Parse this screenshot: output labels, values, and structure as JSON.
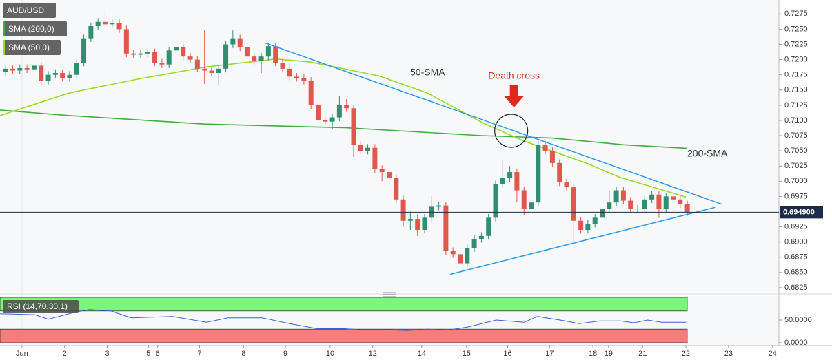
{
  "chart_data": {
    "type": "candlestick",
    "title": "AUD/USD",
    "up_color": "#2f8f6f",
    "down_color": "#e0584d",
    "open": [
      0.718,
      0.7185,
      0.7182,
      0.7186,
      0.7184,
      0.719,
      0.7165,
      0.7175,
      0.7178,
      0.717,
      0.7175,
      0.7195,
      0.7235,
      0.7255,
      0.7262,
      0.7258,
      0.726,
      0.725,
      0.721,
      0.7208,
      0.721,
      0.7212,
      0.7195,
      0.7192,
      0.7215,
      0.722,
      0.7205,
      0.72,
      0.7185,
      0.7182,
      0.7178,
      0.7185,
      0.7225,
      0.7235,
      0.722,
      0.7205,
      0.7198,
      0.7205,
      0.7222,
      0.7195,
      0.7185,
      0.7172,
      0.717,
      0.7165,
      0.7125,
      0.71,
      0.7098,
      0.7105,
      0.7125,
      0.712,
      0.706,
      0.705,
      0.7055,
      0.702,
      0.7015,
      0.7005,
      0.697,
      0.6935,
      0.6938,
      0.692,
      0.694,
      0.6958,
      0.696,
      0.6885,
      0.688,
      0.6865,
      0.689,
      0.6905,
      0.691,
      0.694,
      0.6995,
      0.7005,
      0.7015,
      0.6985,
      0.6955,
      0.6965,
      0.706,
      0.705,
      0.703,
      0.6998,
      0.699,
      0.6935,
      0.692,
      0.693,
      0.694,
      0.6955,
      0.6965,
      0.6985,
      0.6968,
      0.6955,
      0.6955,
      0.697,
      0.6978,
      0.6955,
      0.6975,
      0.697,
      0.6962
    ],
    "high": [
      0.7191,
      0.7191,
      0.7192,
      0.7192,
      0.7196,
      0.7196,
      0.7181,
      0.7184,
      0.7184,
      0.7181,
      0.7201,
      0.7241,
      0.7261,
      0.7268,
      0.728,
      0.7266,
      0.7266,
      0.7256,
      0.7216,
      0.7216,
      0.7218,
      0.7218,
      0.7201,
      0.7221,
      0.7226,
      0.7226,
      0.7211,
      0.7206,
      0.7248,
      0.7188,
      0.7191,
      0.7231,
      0.7248,
      0.7241,
      0.7226,
      0.7211,
      0.7211,
      0.7228,
      0.7228,
      0.7201,
      0.7195,
      0.7178,
      0.7176,
      0.7171,
      0.7131,
      0.7106,
      0.7111,
      0.714,
      0.7135,
      0.7126,
      0.7066,
      0.7061,
      0.7061,
      0.7026,
      0.7021,
      0.7011,
      0.6976,
      0.695,
      0.6944,
      0.6946,
      0.6975,
      0.6966,
      0.6966,
      0.6891,
      0.6886,
      0.6896,
      0.6911,
      0.6916,
      0.6946,
      0.7001,
      0.7035,
      0.7025,
      0.7021,
      0.6991,
      0.6971,
      0.7066,
      0.7066,
      0.7056,
      0.7036,
      0.7004,
      0.6996,
      0.6941,
      0.6936,
      0.6946,
      0.6961,
      0.6985,
      0.6991,
      0.6991,
      0.6974,
      0.6961,
      0.6976,
      0.6984,
      0.6984,
      0.6981,
      0.699,
      0.6976,
      0.6968
    ],
    "low": [
      0.7174,
      0.7176,
      0.7176,
      0.7178,
      0.7178,
      0.7159,
      0.7159,
      0.7169,
      0.7164,
      0.7164,
      0.7169,
      0.7189,
      0.7229,
      0.7249,
      0.7252,
      0.7252,
      0.7244,
      0.7204,
      0.7202,
      0.7202,
      0.7204,
      0.7189,
      0.7186,
      0.7186,
      0.7209,
      0.7199,
      0.7194,
      0.7179,
      0.716,
      0.7172,
      0.7158,
      0.7179,
      0.7219,
      0.7214,
      0.7199,
      0.7192,
      0.7178,
      0.7199,
      0.7189,
      0.7179,
      0.7166,
      0.7164,
      0.7159,
      0.7119,
      0.7094,
      0.7092,
      0.7085,
      0.7099,
      0.7114,
      0.704,
      0.7044,
      0.7044,
      0.7014,
      0.7,
      0.6999,
      0.6964,
      0.6925,
      0.692,
      0.691,
      0.6914,
      0.6934,
      0.6952,
      0.6879,
      0.6874,
      0.6859,
      0.6859,
      0.6884,
      0.6899,
      0.6904,
      0.6934,
      0.6989,
      0.6999,
      0.6965,
      0.6945,
      0.6949,
      0.6959,
      0.7044,
      0.7024,
      0.6992,
      0.6984,
      0.69,
      0.6914,
      0.6914,
      0.6924,
      0.6934,
      0.6949,
      0.6959,
      0.6962,
      0.6949,
      0.6949,
      0.6949,
      0.6964,
      0.694,
      0.6949,
      0.6964,
      0.6956,
      0.6943
    ],
    "close": [
      0.7185,
      0.7182,
      0.7186,
      0.7184,
      0.719,
      0.7165,
      0.7175,
      0.7178,
      0.717,
      0.7175,
      0.7195,
      0.7235,
      0.7255,
      0.7262,
      0.7258,
      0.726,
      0.725,
      0.721,
      0.7208,
      0.721,
      0.7212,
      0.7195,
      0.7192,
      0.7215,
      0.722,
      0.7205,
      0.72,
      0.7185,
      0.7182,
      0.7178,
      0.7185,
      0.7225,
      0.7235,
      0.722,
      0.7205,
      0.7198,
      0.7205,
      0.7222,
      0.7195,
      0.7185,
      0.7172,
      0.717,
      0.7165,
      0.7125,
      0.71,
      0.7098,
      0.7105,
      0.7125,
      0.712,
      0.706,
      0.705,
      0.7055,
      0.702,
      0.7015,
      0.7005,
      0.697,
      0.6935,
      0.6938,
      0.692,
      0.694,
      0.6958,
      0.696,
      0.6885,
      0.688,
      0.6865,
      0.689,
      0.6905,
      0.691,
      0.694,
      0.6995,
      0.7005,
      0.7015,
      0.6985,
      0.6955,
      0.6965,
      0.706,
      0.705,
      0.703,
      0.6998,
      0.699,
      0.6935,
      0.692,
      0.693,
      0.694,
      0.6955,
      0.6965,
      0.6985,
      0.6968,
      0.6955,
      0.6955,
      0.697,
      0.6978,
      0.6955,
      0.6975,
      0.697,
      0.6962,
      0.6949
    ],
    "xlim": [
      -0.8,
      108.9
    ],
    "ylim": [
      0.6817,
      0.7298
    ],
    "xticks": [
      {
        "value": 2.3,
        "label": "Jun"
      },
      {
        "value": 8.3,
        "label": "2"
      },
      {
        "value": 14.3,
        "label": "3"
      },
      {
        "value": 20.1,
        "label": "5"
      },
      {
        "value": 21.4,
        "label": "6"
      },
      {
        "value": 27.3,
        "label": "7"
      },
      {
        "value": 33.5,
        "label": "8"
      },
      {
        "value": 39.4,
        "label": "9"
      },
      {
        "value": 45.7,
        "label": "10"
      },
      {
        "value": 51.7,
        "label": "12"
      },
      {
        "value": 58.6,
        "label": "14"
      },
      {
        "value": 64.9,
        "label": "15"
      },
      {
        "value": 70.7,
        "label": "16"
      },
      {
        "value": 76.6,
        "label": "17"
      },
      {
        "value": 82.7,
        "label": "18"
      },
      {
        "value": 84.9,
        "label": "19"
      },
      {
        "value": 89.7,
        "label": "21"
      },
      {
        "value": 95.8,
        "label": "22"
      },
      {
        "value": 101.8,
        "label": "23"
      },
      {
        "value": 108.0,
        "label": "24"
      }
    ],
    "yticks": [
      0.7275,
      {
        "value": 0.725,
        "label": "0.7250"
      },
      0.7225,
      {
        "value": 0.72,
        "label": "0.7200"
      },
      0.7175,
      {
        "value": 0.715,
        "label": "0.7150"
      },
      0.7125,
      {
        "value": 0.71,
        "label": "0.7100"
      },
      0.7075,
      {
        "value": 0.705,
        "label": "0.7050"
      },
      0.7025,
      {
        "value": 0.7,
        "label": "0.7000"
      },
      0.6975,
      0.6925,
      {
        "value": 0.69,
        "label": "0.6900"
      },
      0.6875,
      {
        "value": 0.685,
        "label": "0.6850"
      },
      0.6825
    ],
    "grid": false,
    "indicators": [
      {
        "name": "SMA (200,0)",
        "label": "200-SMA",
        "color": "#3fae3f",
        "x": [
          -0.8,
          9,
          28,
          48,
          67,
          77,
          87,
          96
        ],
        "values": [
          0.7117,
          0.7108,
          0.7094,
          0.7088,
          0.7075,
          0.7071,
          0.706,
          0.7054
        ]
      },
      {
        "name": "SMA (50,0)",
        "label": "50-SMA",
        "color": "#98dd20",
        "x": [
          -0.8,
          8.9,
          18.6,
          28.3,
          38.1,
          42.9,
          52.6,
          59.4,
          67.2,
          73.0,
          81.7,
          86.6,
          95.8
        ],
        "values": [
          0.7108,
          0.7145,
          0.7168,
          0.7188,
          0.7201,
          0.7196,
          0.7173,
          0.7145,
          0.7096,
          0.7066,
          0.703,
          0.7006,
          0.6974
        ]
      }
    ],
    "trendline_color": "#2a9be8",
    "trendlines": [
      {
        "x": [
          36.6,
          100.9
        ],
        "values": [
          0.7227,
          0.6962
        ]
      },
      {
        "x": [
          62.6,
          99.9
        ],
        "values": [
          0.6847,
          0.6957
        ]
      }
    ],
    "current_price": {
      "value": 0.6949,
      "label": "0.694900"
    },
    "annotation": {
      "text": "Death cross",
      "x": 71.2,
      "value": 0.7083,
      "color": "#e0281c"
    },
    "rsi": {
      "name": "RSI (14,70,30,1)",
      "color": "#3a5fd8",
      "overbought": 70,
      "oversold": 30,
      "ylim": [
        0,
        100
      ],
      "yticks": [
        {
          "value": 50,
          "label": "50.0000"
        },
        {
          "value": 0,
          "label": "0.0000"
        }
      ],
      "x": [
        -0.8,
        4.1,
        6.0,
        9.9,
        11.8,
        14.8,
        17.7,
        23.5,
        28.3,
        31.3,
        36.1,
        40.0,
        43.9,
        47.8,
        49.7,
        53.6,
        56.5,
        59.4,
        62.3,
        65.2,
        69.1,
        73.0,
        74.9,
        78.8,
        80.8,
        83.7,
        86.6,
        88.5,
        90.4,
        92.4,
        95.8
      ],
      "values": [
        64,
        62,
        52,
        68,
        73,
        70,
        55,
        58,
        45,
        55,
        55,
        42,
        31,
        31,
        29,
        29,
        27,
        30,
        28,
        35,
        50,
        45,
        58,
        48,
        42,
        48,
        48,
        44,
        50,
        45,
        45
      ]
    }
  }
}
